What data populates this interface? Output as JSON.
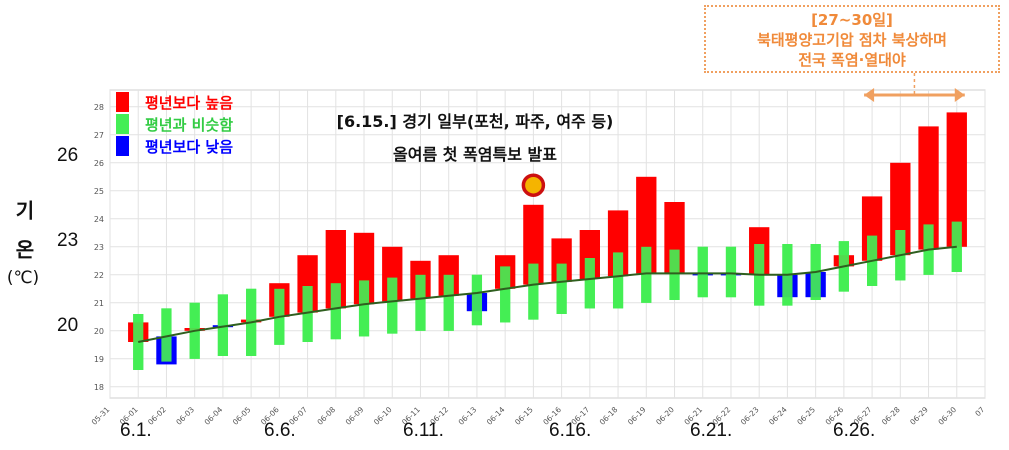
{
  "chart_data": {
    "type": "bar",
    "categories": [
      "06-01",
      "06-02",
      "06-03",
      "06-04",
      "06-05",
      "06-06",
      "06-07",
      "06-08",
      "06-09",
      "06-10",
      "06-11",
      "06-12",
      "06-13",
      "06-14",
      "06-15",
      "06-16",
      "06-17",
      "06-18",
      "06-19",
      "06-20",
      "06-21",
      "06-22",
      "06-23",
      "06-24",
      "06-25",
      "06-26",
      "06-27",
      "06-28",
      "06-29",
      "06-30"
    ],
    "x_tick_labels": [
      "05-31",
      "06-01",
      "06-02",
      "06-03",
      "06-04",
      "06-05",
      "06-06",
      "06-07",
      "06-08",
      "06-09",
      "06-10",
      "06-11",
      "06-12",
      "06-13",
      "06-14",
      "06-15",
      "06-16",
      "06-17",
      "06-18",
      "06-19",
      "06-20",
      "06-21",
      "06-22",
      "06-23",
      "06-24",
      "06-25",
      "06-26",
      "06-27",
      "06-28",
      "06-29",
      "06-30",
      "07"
    ],
    "y_ticks": [
      18,
      19,
      20,
      21,
      22,
      23,
      24,
      25,
      26,
      27,
      28
    ],
    "ylim": [
      17.6,
      28.6
    ],
    "y_major_ticks": [
      {
        "value": 20,
        "label": "20"
      },
      {
        "value": 23,
        "label": "23"
      },
      {
        "value": 26,
        "label": "26"
      }
    ],
    "x_major_ticks": [
      {
        "index": 0,
        "label": "6.1."
      },
      {
        "index": 5,
        "label": "6.6."
      },
      {
        "index": 10,
        "label": "6.11."
      },
      {
        "index": 15,
        "label": "6.16."
      },
      {
        "index": 20,
        "label": "6.21."
      },
      {
        "index": 25,
        "label": "6.26."
      }
    ],
    "ylabel": "기 온",
    "yunit": "(℃)",
    "grid": true,
    "legend_position": "top-left",
    "series": [
      {
        "name": "평년보다 높음",
        "color": "#ff0000"
      },
      {
        "name": "평년과 비슷함",
        "color": "#44ee55"
      },
      {
        "name": "평년보다 낮음",
        "color": "#0000ff"
      }
    ],
    "observed": [
      20.3,
      18.8,
      20.1,
      20.2,
      20.4,
      21.7,
      22.7,
      23.6,
      23.5,
      23.0,
      22.5,
      22.7,
      20.7,
      22.7,
      24.5,
      23.3,
      23.6,
      24.3,
      25.5,
      24.6,
      22.0,
      22.0,
      23.7,
      21.2,
      21.2,
      22.7,
      24.8,
      26.0,
      27.3,
      27.8
    ],
    "normal": [
      19.6,
      19.8,
      20.0,
      20.15,
      20.3,
      20.5,
      20.65,
      20.8,
      20.95,
      21.05,
      21.15,
      21.25,
      21.35,
      21.5,
      21.65,
      21.75,
      21.85,
      21.95,
      22.05,
      22.05,
      22.05,
      22.05,
      22.0,
      22.0,
      22.1,
      22.3,
      22.5,
      22.7,
      22.9,
      23.0
    ],
    "similar_low": [
      18.6,
      18.9,
      19.0,
      19.1,
      19.1,
      19.5,
      19.6,
      19.7,
      19.8,
      19.9,
      20.0,
      20.0,
      20.2,
      20.3,
      20.4,
      20.6,
      20.8,
      20.8,
      21.0,
      21.1,
      21.2,
      21.2,
      20.9,
      20.9,
      21.1,
      21.4,
      21.6,
      21.8,
      22.0,
      22.1
    ],
    "similar_high": [
      20.6,
      20.8,
      21.0,
      21.3,
      21.5,
      21.5,
      21.6,
      21.7,
      21.8,
      21.9,
      22.0,
      22.0,
      22.0,
      22.3,
      22.4,
      22.4,
      22.6,
      22.8,
      23.0,
      22.9,
      23.0,
      23.0,
      23.1,
      23.1,
      23.1,
      23.2,
      23.4,
      23.6,
      23.8,
      23.9
    ],
    "category_value": [
      "high",
      "low",
      "high",
      "low",
      "high",
      "high",
      "high",
      "high",
      "high",
      "high",
      "high",
      "high",
      "low",
      "high",
      "high",
      "high",
      "high",
      "high",
      "high",
      "high",
      "low",
      "low",
      "high",
      "low",
      "low",
      "high",
      "high",
      "high",
      "high",
      "high"
    ],
    "annotations": {
      "event_title": "[6.15.] 경기 일부(포천, 파주, 여주 등)",
      "event_subtitle": "올여름 첫 폭염특보 발표",
      "event_marker_day": "06-15",
      "event_marker_value": 25.2,
      "heat_line1": "[27~30일]",
      "heat_line2": "북태평양고기압 점차 북상하며",
      "heat_line3": "전국 폭염·열대야",
      "heat_arrow_from": "06-27",
      "heat_arrow_to": "06-30"
    }
  },
  "colors": {
    "high": "#ff0000",
    "similar": "#44ee55",
    "low": "#0000ff",
    "normal_line": "#2f5f1f",
    "grid": "#e2e2e2",
    "orange": "#f0a060",
    "marker_fill": "#f5b400",
    "marker_ring": "#cc1010"
  }
}
